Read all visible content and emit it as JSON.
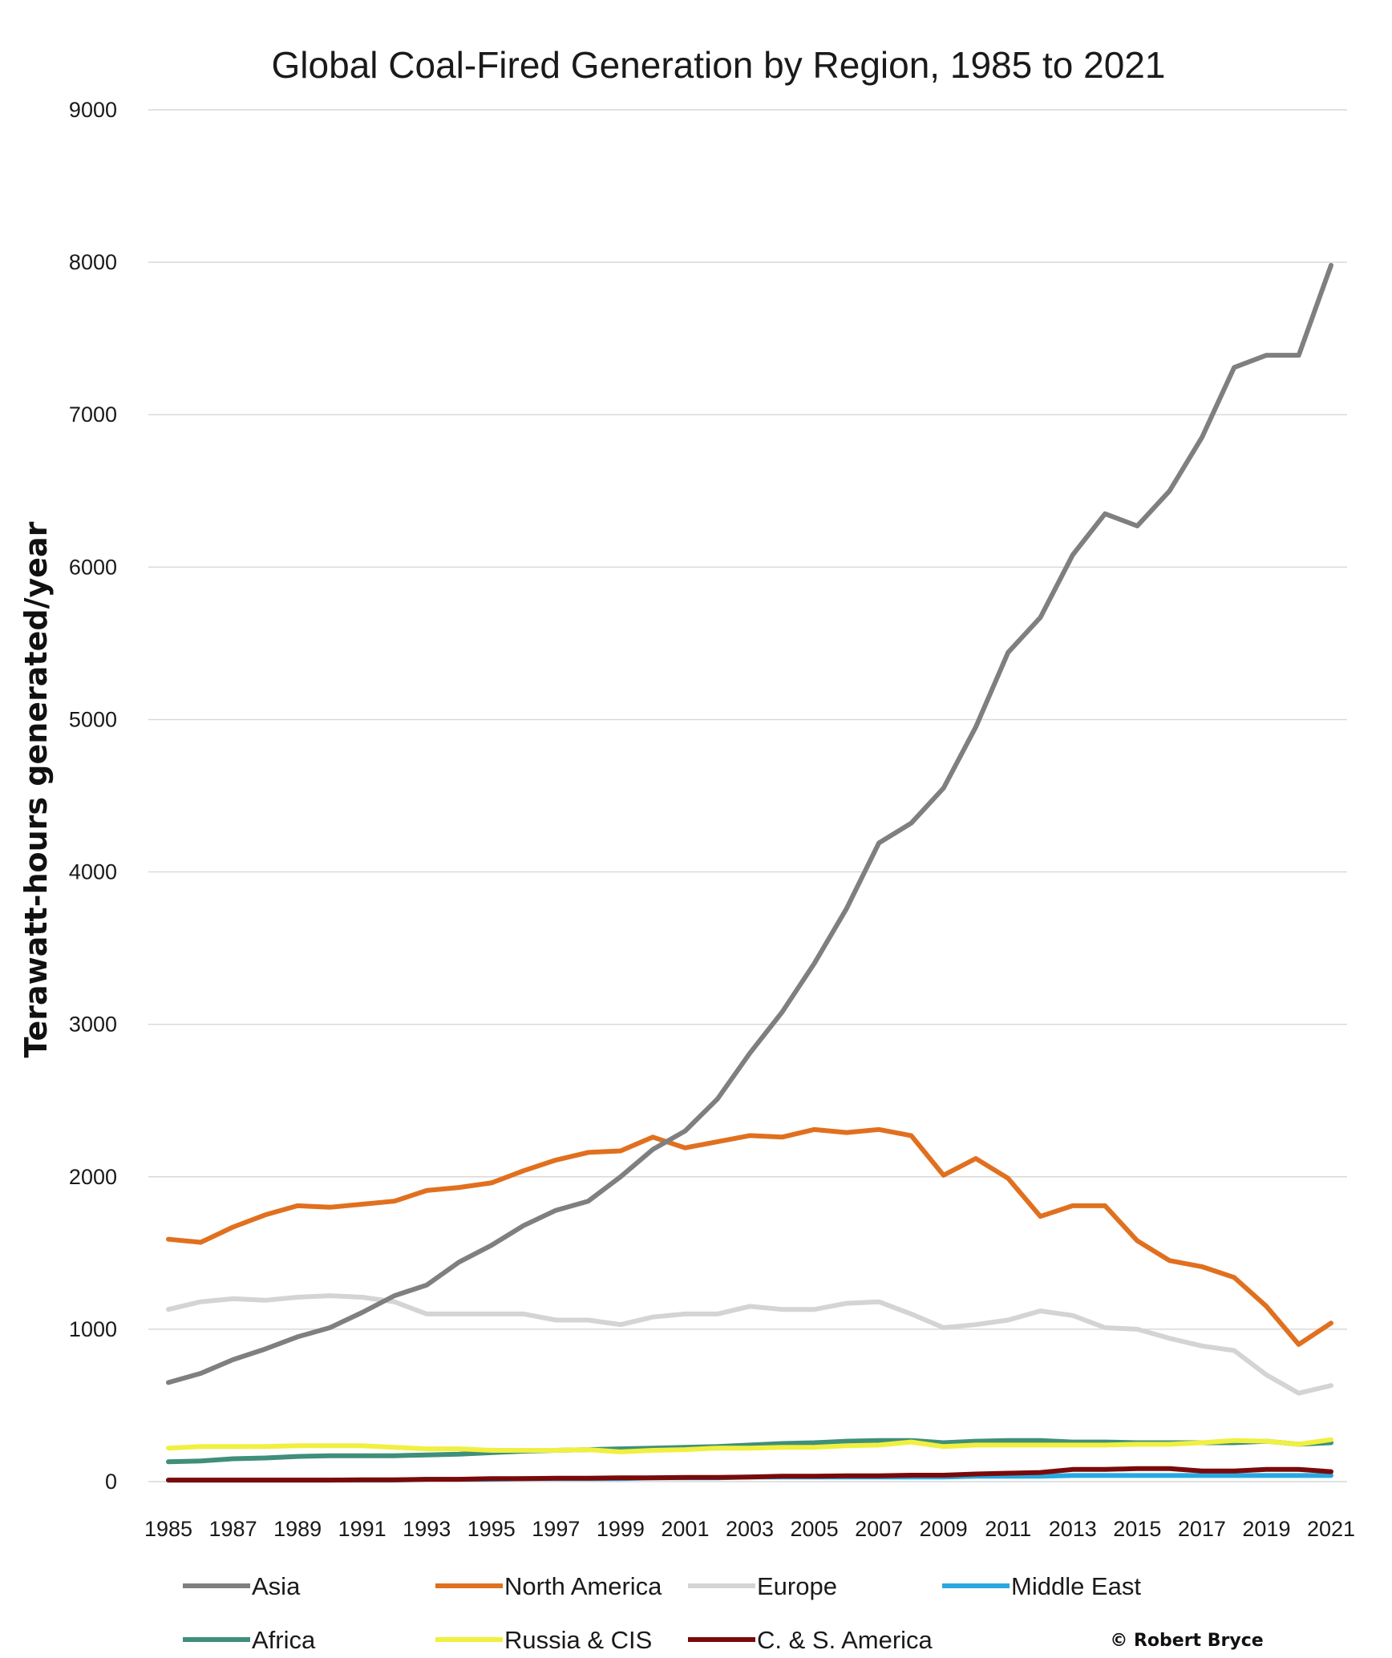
{
  "chart_data": {
    "type": "line",
    "title": "Global Coal-Fired Generation by Region, 1985 to 2021",
    "ylabel": "Terawatt-hours generated/year",
    "xlabel": "",
    "ylim": [
      0,
      9000
    ],
    "y_ticks": [
      "0",
      "1000",
      "2000",
      "3000",
      "4000",
      "5000",
      "6000",
      "7000",
      "8000",
      "9000"
    ],
    "x": [
      1985,
      1986,
      1987,
      1988,
      1989,
      1990,
      1991,
      1992,
      1993,
      1994,
      1995,
      1996,
      1997,
      1998,
      1999,
      2000,
      2001,
      2002,
      2003,
      2004,
      2005,
      2006,
      2007,
      2008,
      2009,
      2010,
      2011,
      2012,
      2013,
      2014,
      2015,
      2016,
      2017,
      2018,
      2019,
      2020,
      2021
    ],
    "x_tick_labels": [
      "1985",
      "1987",
      "1989",
      "1991",
      "1993",
      "1995",
      "1997",
      "1999",
      "2001",
      "2003",
      "2005",
      "2007",
      "2009",
      "2011",
      "2013",
      "2015",
      "2017",
      "2019",
      "2021"
    ],
    "grid": true,
    "legend_position": "bottom",
    "series": [
      {
        "name": "Asia",
        "color": "#7f7f7f",
        "values": [
          650,
          710,
          800,
          870,
          950,
          1010,
          1110,
          1220,
          1290,
          1440,
          1550,
          1680,
          1780,
          1840,
          2000,
          2180,
          2300,
          2510,
          2810,
          3080,
          3400,
          3760,
          4190,
          4320,
          4550,
          4950,
          5440,
          5670,
          6080,
          6350,
          6270,
          6500,
          6850,
          7310,
          7390,
          7390,
          7980
        ]
      },
      {
        "name": "North America",
        "color": "#e0701f",
        "values": [
          1590,
          1570,
          1670,
          1750,
          1810,
          1800,
          1820,
          1840,
          1910,
          1930,
          1960,
          2040,
          2110,
          2160,
          2170,
          2260,
          2190,
          2230,
          2270,
          2260,
          2310,
          2290,
          2310,
          2270,
          2010,
          2120,
          1990,
          1740,
          1810,
          1810,
          1580,
          1450,
          1410,
          1340,
          1150,
          900,
          1040
        ]
      },
      {
        "name": "Europe",
        "color": "#d4d4d4",
        "values": [
          1130,
          1180,
          1200,
          1190,
          1210,
          1220,
          1210,
          1180,
          1100,
          1100,
          1100,
          1100,
          1060,
          1060,
          1030,
          1080,
          1100,
          1100,
          1150,
          1130,
          1130,
          1170,
          1180,
          1100,
          1010,
          1030,
          1060,
          1120,
          1090,
          1010,
          1000,
          940,
          890,
          860,
          700,
          580,
          630
        ]
      },
      {
        "name": "Middle East",
        "color": "#29a8e0",
        "values": [
          10,
          10,
          10,
          10,
          10,
          10,
          10,
          10,
          15,
          15,
          15,
          20,
          20,
          20,
          20,
          25,
          25,
          25,
          30,
          30,
          30,
          30,
          30,
          30,
          30,
          35,
          35,
          35,
          40,
          40,
          40,
          40,
          40,
          40,
          40,
          40,
          40
        ]
      },
      {
        "name": "Africa",
        "color": "#3f8f7a",
        "values": [
          130,
          135,
          150,
          155,
          165,
          170,
          170,
          170,
          175,
          180,
          190,
          200,
          205,
          210,
          215,
          220,
          225,
          230,
          240,
          250,
          255,
          265,
          270,
          270,
          255,
          265,
          270,
          270,
          260,
          260,
          255,
          255,
          255,
          255,
          265,
          245,
          255
        ]
      },
      {
        "name": "Russia & CIS",
        "color": "#f0f040",
        "values": [
          220,
          230,
          230,
          230,
          235,
          235,
          235,
          225,
          215,
          215,
          205,
          205,
          205,
          210,
          195,
          205,
          210,
          220,
          220,
          225,
          225,
          235,
          240,
          260,
          230,
          240,
          240,
          240,
          240,
          240,
          245,
          245,
          255,
          270,
          265,
          245,
          275
        ]
      },
      {
        "name": "C. & S. America",
        "color": "#7a0a0a",
        "values": [
          10,
          10,
          10,
          10,
          10,
          10,
          12,
          12,
          15,
          15,
          20,
          20,
          22,
          22,
          25,
          25,
          28,
          28,
          30,
          35,
          35,
          38,
          38,
          42,
          42,
          50,
          55,
          60,
          80,
          80,
          85,
          85,
          70,
          70,
          80,
          80,
          65
        ]
      }
    ]
  },
  "credit": "© Robert Bryce"
}
